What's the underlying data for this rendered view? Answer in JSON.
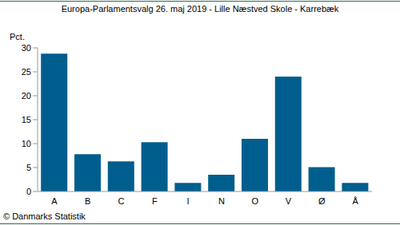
{
  "chart_data": {
    "type": "bar",
    "title": "Europa-Parlamentsvalg 26. maj 2019 - Lille Næstved Skole - Karrebæk",
    "y_label": "Pct.",
    "source": "© Danmarks Statistik",
    "categories": [
      "A",
      "B",
      "C",
      "F",
      "I",
      "N",
      "O",
      "V",
      "Ø",
      "Å"
    ],
    "values": [
      28.8,
      7.8,
      6.3,
      10.3,
      1.8,
      3.5,
      11.0,
      24.0,
      5.1,
      1.8
    ],
    "color": "#005e8e",
    "ylim": [
      0,
      30
    ],
    "yticks": [
      0,
      5,
      10,
      15,
      20,
      25,
      30
    ],
    "grid": false
  }
}
